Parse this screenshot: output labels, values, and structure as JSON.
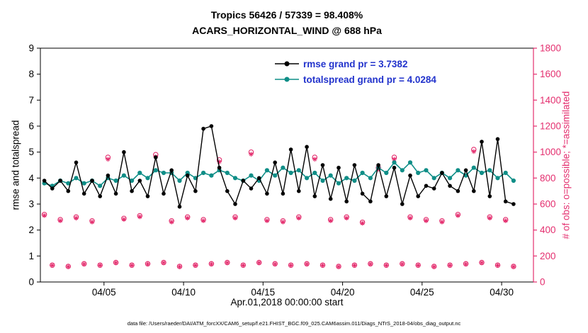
{
  "title": {
    "line1": "Tropics 56426 / 57339 = 98.408%",
    "line2": "ACARS_HORIZONTAL_WIND @ 688 hPa"
  },
  "legend": {
    "text_color": "#2233cc",
    "items": [
      {
        "label": "rmse grand pr = 3.7382",
        "color": "#000000"
      },
      {
        "label": "totalspread grand pr = 4.0284",
        "color": "#0f8e87"
      }
    ]
  },
  "axes": {
    "ylabel_left": "rmse and totalspread",
    "ylabel_right": "# of obs: o=possible; *=assimilated",
    "xlabel": "Apr.01,2018 00:00:00 start",
    "right_axis_color": "#e42f6f"
  },
  "footer": {
    "datafile": "data file: /Users/raeder/DAI/ATM_forcXX/CAM6_setup/f.e21.FHIST_BGC.f09_025.CAM6assim.011/Diags_NTrS_2018-04/obs_diag_output.nc"
  },
  "chart_data": {
    "type": "line",
    "title": "Tropics 56426 / 57339 = 98.408%",
    "subtitle": "ACARS_HORIZONTAL_WIND @ 688 hPa",
    "xlabel": "Apr.01,2018 00:00:00 start",
    "ylabel_left": "rmse and totalspread",
    "ylabel_right": "# of obs: o=possible; *=assimilated",
    "ylim_left": [
      0,
      9
    ],
    "ylim_right": [
      0,
      1800
    ],
    "xlim_days": [
      0,
      31
    ],
    "grid": false,
    "yticks_left": [
      0,
      1,
      2,
      3,
      4,
      5,
      6,
      7,
      8,
      9
    ],
    "yticks_right": [
      0,
      200,
      400,
      600,
      800,
      1000,
      1200,
      1400,
      1600,
      1800
    ],
    "xticks": [
      {
        "t": 4,
        "label": "04/05"
      },
      {
        "t": 9,
        "label": "04/10"
      },
      {
        "t": 14,
        "label": "04/15"
      },
      {
        "t": 19,
        "label": "04/20"
      },
      {
        "t": 24,
        "label": "04/25"
      },
      {
        "t": 29,
        "label": "04/30"
      }
    ],
    "x_days": [
      0.25,
      0.75,
      1.25,
      1.75,
      2.25,
      2.75,
      3.25,
      3.75,
      4.25,
      4.75,
      5.25,
      5.75,
      6.25,
      6.75,
      7.25,
      7.75,
      8.25,
      8.75,
      9.25,
      9.75,
      10.25,
      10.75,
      11.25,
      11.75,
      12.25,
      12.75,
      13.25,
      13.75,
      14.25,
      14.75,
      15.25,
      15.75,
      16.25,
      16.75,
      17.25,
      17.75,
      18.25,
      18.75,
      19.25,
      19.75,
      20.25,
      20.75,
      21.25,
      21.75,
      22.25,
      22.75,
      23.25,
      23.75,
      24.25,
      24.75,
      25.25,
      25.75,
      26.25,
      26.75,
      27.25,
      27.75,
      28.25,
      28.75,
      29.25,
      29.75
    ],
    "series": [
      {
        "name": "rmse",
        "grand_pr": 3.7382,
        "color": "#000000",
        "axis": "left",
        "marker": "dot",
        "values": [
          3.9,
          3.6,
          3.9,
          3.5,
          4.6,
          3.4,
          3.9,
          3.3,
          4.1,
          3.4,
          5.0,
          3.5,
          3.9,
          3.3,
          4.8,
          3.4,
          4.3,
          2.9,
          4.1,
          3.5,
          5.9,
          6.0,
          4.4,
          3.5,
          3.0,
          3.9,
          3.6,
          4.0,
          3.4,
          4.6,
          3.4,
          5.1,
          3.5,
          5.2,
          3.3,
          4.5,
          3.2,
          4.4,
          3.1,
          4.5,
          3.4,
          3.1,
          4.5,
          3.3,
          4.4,
          3.0,
          4.1,
          3.3,
          3.7,
          3.6,
          4.2,
          3.7,
          3.5,
          4.3,
          3.5,
          5.4,
          3.3,
          5.5,
          3.1,
          3.0
        ]
      },
      {
        "name": "totalspread",
        "grand_pr": 4.0284,
        "color": "#0f8e87",
        "axis": "left",
        "marker": "dot",
        "values": [
          3.8,
          3.7,
          3.9,
          3.8,
          4.0,
          3.8,
          3.9,
          3.7,
          4.0,
          3.9,
          4.1,
          3.9,
          4.2,
          4.0,
          4.3,
          4.2,
          4.2,
          3.9,
          4.2,
          4.0,
          4.2,
          4.1,
          4.3,
          4.2,
          4.0,
          3.9,
          4.1,
          3.9,
          4.3,
          4.1,
          4.4,
          4.2,
          4.3,
          4.0,
          4.2,
          3.9,
          4.1,
          3.8,
          4.0,
          3.9,
          4.2,
          4.0,
          4.4,
          4.2,
          4.6,
          4.3,
          4.6,
          4.2,
          4.3,
          4.0,
          4.2,
          4.0,
          4.3,
          4.1,
          4.4,
          4.2,
          4.3,
          4.0,
          4.2,
          3.9
        ]
      },
      {
        "name": "obs_possible",
        "color": "#e42f6f",
        "axis": "right",
        "marker": "o",
        "values": [
          520,
          130,
          480,
          120,
          500,
          140,
          470,
          130,
          960,
          150,
          490,
          130,
          510,
          140,
          980,
          150,
          470,
          120,
          500,
          130,
          480,
          140,
          940,
          150,
          500,
          130,
          1000,
          150,
          480,
          140,
          470,
          130,
          500,
          140,
          960,
          130,
          480,
          120,
          500,
          130,
          460,
          140,
          880,
          130,
          960,
          140,
          500,
          130,
          480,
          120,
          470,
          130,
          520,
          140,
          1020,
          150,
          500,
          130,
          480,
          120
        ]
      },
      {
        "name": "obs_assimilated",
        "color": "#e42f6f",
        "axis": "right",
        "marker": "*",
        "values": [
          512,
          128,
          472,
          118,
          492,
          138,
          462,
          128,
          945,
          148,
          482,
          128,
          502,
          138,
          964,
          148,
          462,
          118,
          492,
          128,
          472,
          138,
          925,
          148,
          492,
          128,
          984,
          148,
          472,
          138,
          462,
          128,
          492,
          138,
          945,
          128,
          472,
          118,
          492,
          128,
          453,
          138,
          866,
          128,
          945,
          138,
          492,
          128,
          472,
          118,
          462,
          128,
          512,
          138,
          1004,
          148,
          492,
          128,
          472,
          118
        ]
      }
    ]
  }
}
